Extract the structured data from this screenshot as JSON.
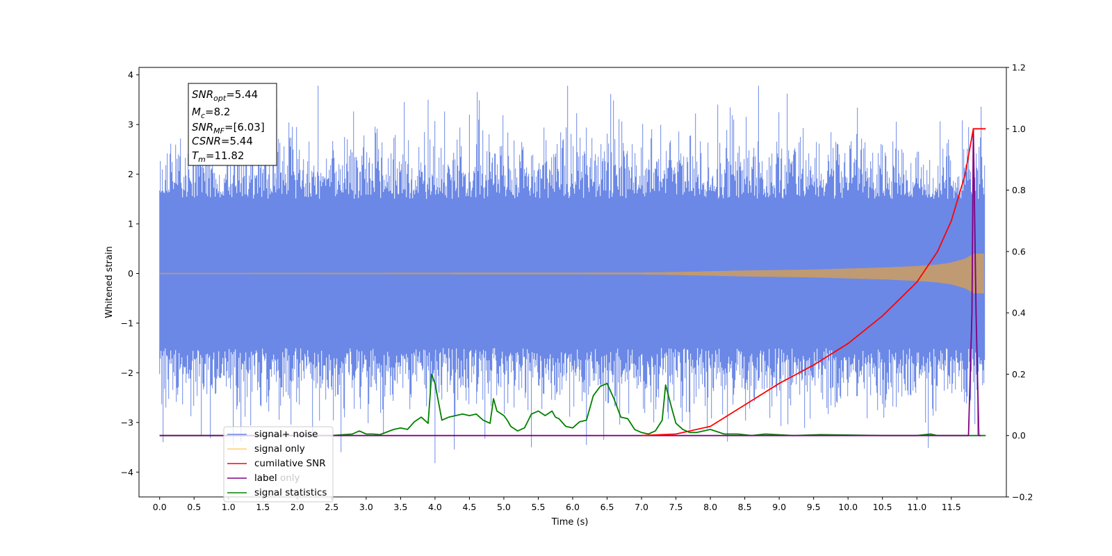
{
  "chart_data": {
    "type": "line",
    "xlabel": "Time (s)",
    "ylabel": "Whitened strain",
    "x_ticks": [
      "0.0",
      "0.5",
      "1.0",
      "1.5",
      "2.0",
      "2.5",
      "3.0",
      "3.5",
      "4.0",
      "4.5",
      "5.0",
      "5.5",
      "6.0",
      "6.5",
      "7.0",
      "7.5",
      "8.0",
      "8.5",
      "9.0",
      "9.5",
      "10.0",
      "10.5",
      "11.0",
      "11.5"
    ],
    "y_ticks": [
      "−4",
      "−3",
      "−2",
      "−1",
      "0",
      "1",
      "2",
      "3",
      "4"
    ],
    "y2_ticks": [
      "−0.2",
      "0.0",
      "0.2",
      "0.4",
      "0.6",
      "0.8",
      "1.0",
      "1.2"
    ],
    "xlim": [
      -0.3,
      12.3
    ],
    "ylim": [
      -4.5,
      4.15
    ],
    "y2lim": [
      -0.2,
      1.2
    ],
    "info_box": {
      "snr_opt": "=5.44",
      "mc": "=8.2",
      "snr_mf": "=[6.03]",
      "csnr": "=5.44",
      "tm": "=11.82"
    },
    "legend": {
      "placement": "lower-left",
      "entries": [
        "signal+ noise",
        "signal only",
        "cumilative SNR",
        "label",
        "label only",
        "signal statistics"
      ]
    },
    "colors": {
      "signal_noise": "#6b88e6",
      "signal_only": "#ffa500",
      "signal_blend": "#c09a72",
      "cumulative_snr": "#ff0000",
      "label": "#800080",
      "signal_statistics": "#008000"
    },
    "series": [
      {
        "name": "signal+ noise",
        "axis": "left",
        "description": "noise band",
        "x_range": [
          0.0,
          11.98
        ],
        "envelope_lower": -1.5,
        "envelope_upper": 1.5,
        "max_value": 3.78,
        "min_value": -3.82
      },
      {
        "name": "signal only",
        "axis": "left",
        "chirp_amplitude": {
          "x": [
            0.0,
            7.0,
            7.5,
            8.0,
            8.5,
            9.0,
            9.5,
            10.0,
            10.5,
            11.0,
            11.3,
            11.5,
            11.7,
            11.8,
            11.82
          ],
          "y": [
            0.01,
            0.02,
            0.03,
            0.045,
            0.06,
            0.07,
            0.08,
            0.1,
            0.12,
            0.15,
            0.18,
            0.22,
            0.3,
            0.38,
            0.4
          ]
        }
      },
      {
        "name": "cumilative SNR",
        "axis": "right",
        "x": [
          7.0,
          7.5,
          8.0,
          8.5,
          9.0,
          9.5,
          10.0,
          10.5,
          11.0,
          11.3,
          11.5,
          11.7,
          11.82,
          12.0
        ],
        "y": [
          0.0,
          0.005,
          0.03,
          0.1,
          0.17,
          0.23,
          0.3,
          0.39,
          0.5,
          0.6,
          0.7,
          0.85,
          1.0,
          1.0
        ]
      },
      {
        "name": "label",
        "axis": "right",
        "x": [
          0.0,
          11.75,
          11.8,
          11.82,
          11.86,
          11.9,
          11.93
        ],
        "y": [
          0.0,
          0.0,
          0.4,
          1.0,
          0.4,
          0.0,
          0.0
        ]
      },
      {
        "name": "signal statistics",
        "axis": "right",
        "x": [
          0.0,
          2.5,
          2.8,
          2.9,
          3.0,
          3.1,
          3.2,
          3.4,
          3.5,
          3.6,
          3.7,
          3.8,
          3.9,
          3.95,
          4.0,
          4.1,
          4.2,
          4.3,
          4.4,
          4.5,
          4.6,
          4.7,
          4.8,
          4.85,
          4.9,
          5.0,
          5.05,
          5.1,
          5.2,
          5.3,
          5.4,
          5.5,
          5.6,
          5.7,
          5.75,
          5.8,
          5.9,
          6.0,
          6.1,
          6.2,
          6.3,
          6.4,
          6.5,
          6.6,
          6.7,
          6.8,
          6.9,
          7.0,
          7.1,
          7.2,
          7.3,
          7.35,
          7.45,
          7.5,
          7.6,
          7.7,
          7.8,
          7.9,
          8.0,
          8.2,
          8.4,
          8.6,
          8.8,
          9.2,
          9.6,
          10.5,
          11.0,
          11.2,
          11.3,
          11.5,
          12.0
        ],
        "y": [
          0.0,
          0.0,
          0.005,
          0.015,
          0.005,
          0.005,
          0.003,
          0.02,
          0.025,
          0.02,
          0.045,
          0.06,
          0.04,
          0.2,
          0.17,
          0.05,
          0.06,
          0.065,
          0.07,
          0.065,
          0.07,
          0.05,
          0.04,
          0.12,
          0.08,
          0.065,
          0.05,
          0.03,
          0.015,
          0.025,
          0.07,
          0.08,
          0.065,
          0.08,
          0.06,
          0.055,
          0.03,
          0.025,
          0.045,
          0.05,
          0.13,
          0.16,
          0.17,
          0.12,
          0.06,
          0.055,
          0.02,
          0.01,
          0.005,
          0.015,
          0.05,
          0.165,
          0.08,
          0.04,
          0.02,
          0.01,
          0.01,
          0.015,
          0.02,
          0.005,
          0.005,
          0.0,
          0.005,
          0.0,
          0.003,
          0.0,
          0.0,
          0.005,
          0.0,
          0.0,
          0.0
        ]
      }
    ]
  }
}
